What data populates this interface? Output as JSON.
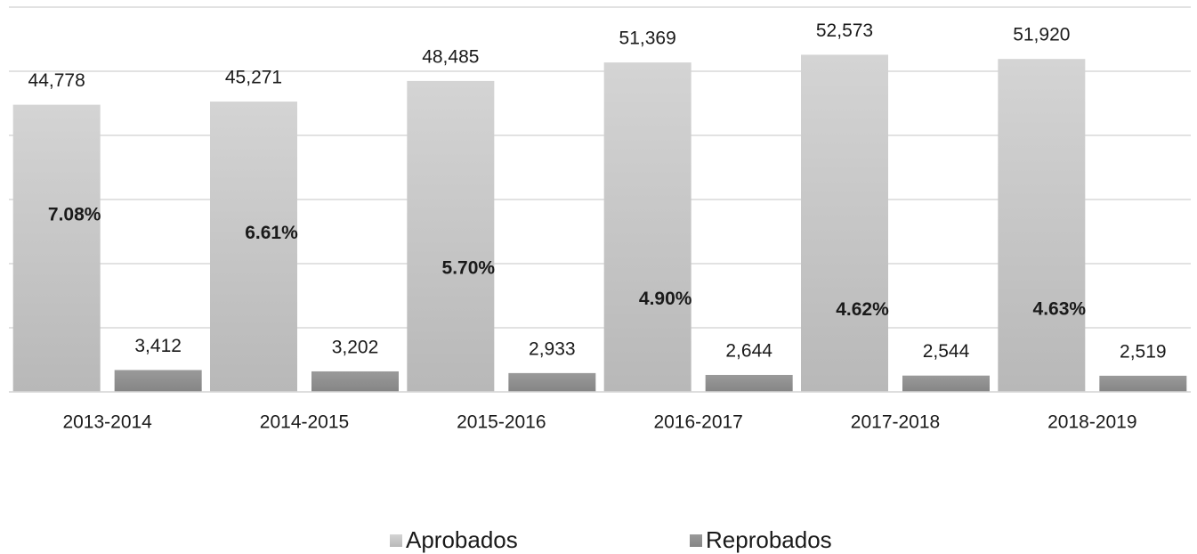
{
  "chart_data": {
    "type": "bar",
    "categories": [
      "2013-2014",
      "2014-2015",
      "2015-2016",
      "2016-2017",
      "2017-2018",
      "2018-2019"
    ],
    "series": [
      {
        "name": "Aprobados",
        "color": "#c8c8c8",
        "values": [
          44778,
          45271,
          48485,
          51369,
          52573,
          51920
        ],
        "value_labels": [
          "44,778",
          "45,271",
          "48,485",
          "51,369",
          "52,573",
          "51,920"
        ]
      },
      {
        "name": "Reprobados",
        "color": "#8f8f8f",
        "values": [
          3412,
          3202,
          2933,
          2644,
          2544,
          2519
        ],
        "value_labels": [
          "3,412",
          "3,202",
          "2,933",
          "2,644",
          "2,544",
          "2,519"
        ]
      },
      {
        "type": "line",
        "axis": "y2",
        "values": [
          7.08,
          6.61,
          5.7,
          4.9,
          4.62,
          4.63
        ],
        "value_labels": [
          "7.08%",
          "6.61%",
          "5.70%",
          "4.90%",
          "4.62%",
          "4.63%"
        ]
      }
    ],
    "ylim": [
      0,
      60000
    ],
    "yticks": [
      0,
      10000,
      20000,
      30000,
      40000,
      50000,
      60000
    ],
    "y2lim": [
      2.5,
      12.5
    ],
    "grid": true,
    "legend": "bottom"
  }
}
